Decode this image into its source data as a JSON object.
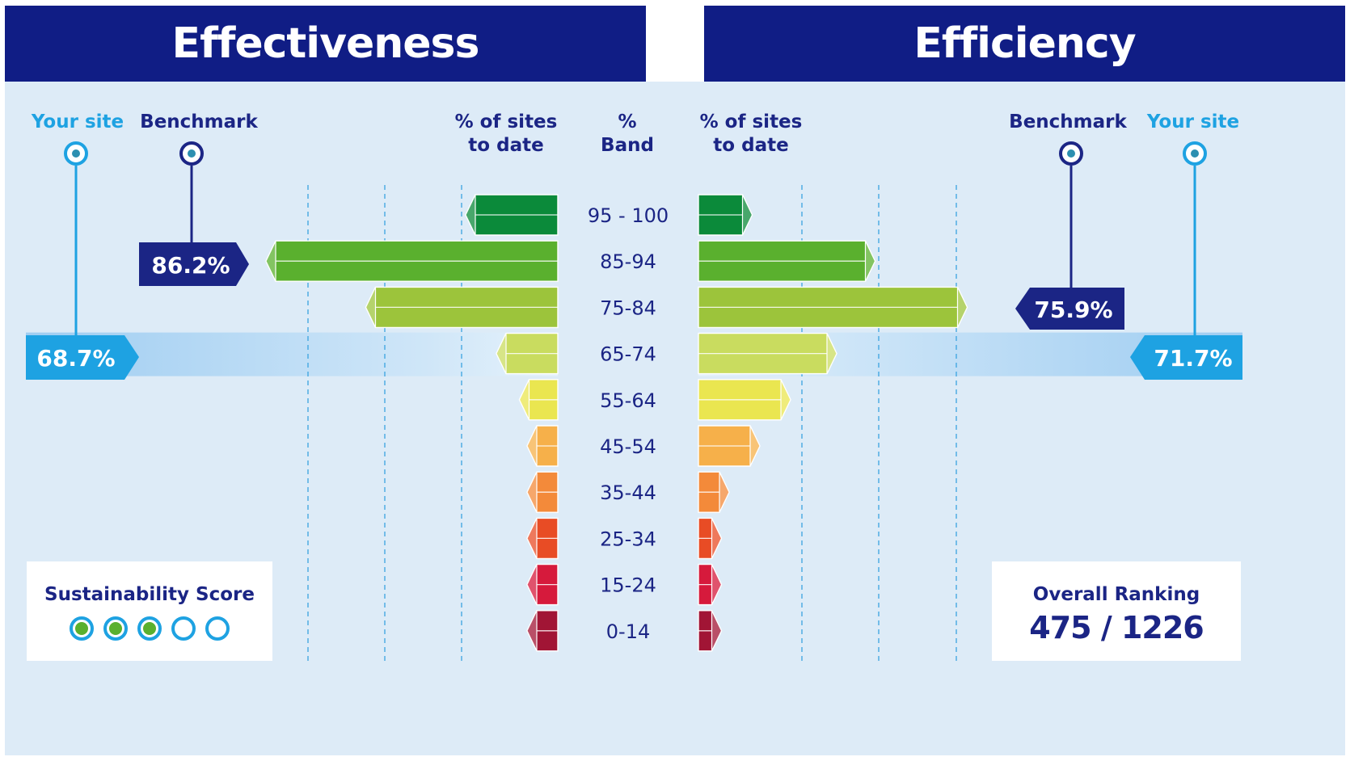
{
  "headers": {
    "left": "Effectiveness",
    "right": "Efficiency"
  },
  "labels": {
    "your_site_left": "Your site",
    "benchmark_left": "Benchmark",
    "pct_sites_left": "% of sites\nto date",
    "band": "%\nBand",
    "pct_sites_right": "% of sites\nto date",
    "benchmark_right": "Benchmark",
    "your_site_right": "Your site"
  },
  "markers": {
    "effectiveness_your_site": "68.7%",
    "effectiveness_benchmark": "86.2%",
    "efficiency_your_site": "71.7%",
    "efficiency_benchmark": "75.9%"
  },
  "sustainability": {
    "title": "Sustainability Score",
    "filled": 3,
    "total": 5
  },
  "ranking": {
    "title": "Overall Ranking",
    "value": "475 / 1226"
  },
  "colors": {
    "header": "#101d85",
    "panel": "#ddebf7",
    "your_site": "#1ea2e2",
    "benchmark": "#1b2585",
    "bands": [
      "#0b8a3a",
      "#5ab02e",
      "#9cc43b",
      "#c9dc5f",
      "#eae650",
      "#f6b04a",
      "#f38a3a",
      "#e84c25",
      "#d61a3c",
      "#a11535"
    ]
  },
  "chart_data": {
    "type": "bar",
    "categories": [
      "95 - 100",
      "85-94",
      "75-84",
      "65-74",
      "55-64",
      "45-54",
      "35-44",
      "25-34",
      "15-24",
      "0-14"
    ],
    "series": [
      {
        "name": "Effectiveness",
        "values": [
          12,
          38,
          25,
          8,
          5,
          4,
          4,
          4,
          4,
          4
        ]
      },
      {
        "name": "Efficiency",
        "values": [
          7,
          23,
          35,
          18,
          12,
          8,
          4,
          3,
          3,
          3
        ]
      }
    ],
    "xlim": [
      0,
      40
    ],
    "grid": true,
    "highlight_band": "65-74"
  }
}
